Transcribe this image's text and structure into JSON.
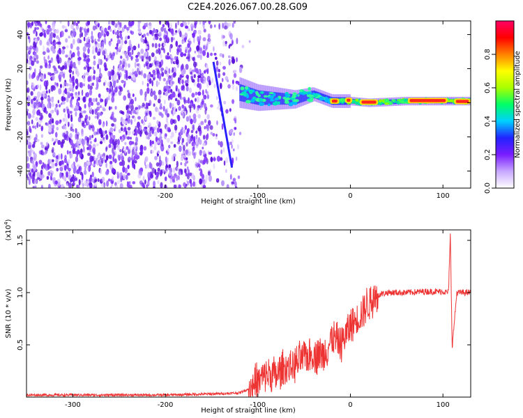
{
  "title": "C2E4.2026.067.00.28.G09",
  "chart_data": [
    {
      "type": "heatmap",
      "title": "C2E4.2026.067.00.28.G09",
      "xlabel": "Height of straight line (km)",
      "ylabel": "Frequency (Hz)",
      "xlim": [
        -350,
        130
      ],
      "ylim": [
        -50,
        48
      ],
      "xticks": [
        -300,
        -200,
        -100,
        0,
        100
      ],
      "yticks": [
        -40,
        -20,
        0,
        20,
        40
      ],
      "colorbar": {
        "label": "Normalized spectral amplitude",
        "range": [
          0,
          1
        ],
        "ticks": [
          "0.0",
          "0.2",
          "0.4",
          "0.6",
          "0.8"
        ],
        "tick_values": [
          0.0,
          0.2,
          0.4,
          0.6,
          0.8
        ],
        "colors": [
          "#ffffff",
          "#c8a8ff",
          "#7a1dff",
          "#2222ff",
          "#00d0ff",
          "#00ff66",
          "#a8ff00",
          "#ffff00",
          "#ff8000",
          "#ff0000",
          "#ff0066"
        ]
      },
      "features": {
        "noise_region_x": [
          -350,
          -120
        ],
        "signal_trace": {
          "x": [
            -120,
            -100,
            -60,
            -40,
            -20,
            0,
            20,
            60,
            100,
            130
          ],
          "y": [
            6,
            3,
            2,
            5,
            1,
            1,
            0,
            1,
            1,
            1
          ]
        },
        "diagonal_streak": {
          "x": [
            -148,
            -128
          ],
          "y": [
            24,
            -38
          ]
        }
      }
    },
    {
      "type": "line",
      "xlabel": "Height of straight line (km)",
      "ylabel": "SNR (10 * v/v)",
      "scale_label": "(x10",
      "scale_exponent": "4",
      "scale_close": ")",
      "xlim": [
        -350,
        130
      ],
      "ylim": [
        0,
        1.6
      ],
      "xticks": [
        -300,
        -200,
        -100,
        0,
        100
      ],
      "yticks": [
        0.5,
        1.0,
        1.5
      ],
      "ytick_labels": [
        "0.5",
        "1.0",
        "1.5"
      ],
      "series": [
        {
          "name": "SNR",
          "color": "#ee3333",
          "x": [
            -350,
            -300,
            -250,
            -200,
            -150,
            -120,
            -110,
            -100,
            -90,
            -80,
            -70,
            -60,
            -50,
            -40,
            -30,
            -20,
            -10,
            0,
            10,
            20,
            30,
            40,
            60,
            80,
            100,
            106,
            108,
            110,
            115,
            130
          ],
          "y": [
            0.02,
            0.02,
            0.02,
            0.02,
            0.03,
            0.04,
            0.08,
            0.15,
            0.22,
            0.2,
            0.28,
            0.3,
            0.38,
            0.42,
            0.4,
            0.55,
            0.52,
            0.68,
            0.78,
            0.9,
            0.98,
            1.0,
            1.0,
            1.01,
            1.01,
            1.0,
            1.55,
            0.48,
            1.0,
            1.0
          ]
        }
      ]
    }
  ]
}
